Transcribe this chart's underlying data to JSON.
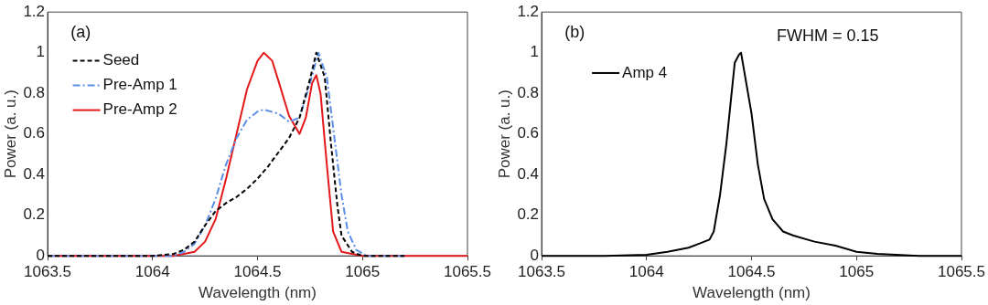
{
  "chart_data": [
    {
      "type": "line",
      "xlabel": "Wavelength (nm)",
      "ylabel": "Power (a. u.)",
      "annotations": [
        "(a)"
      ],
      "xlim": [
        1063.5,
        1065.5
      ],
      "xticks": [
        1063.5,
        1064,
        1064.5,
        1065,
        1065.5
      ],
      "ylim": [
        0,
        1.2
      ],
      "yticks": [
        0,
        0.2,
        0.4,
        0.6,
        0.8,
        1,
        1.2
      ],
      "grid": false,
      "legend": "top left",
      "marker": "none",
      "series": [
        {
          "name": "Seed",
          "color": "#000000",
          "line_style": "dashed",
          "x": [
            1063.5,
            1064.0,
            1064.1,
            1064.15,
            1064.2,
            1064.25,
            1064.3,
            1064.35,
            1064.4,
            1064.45,
            1064.5,
            1064.55,
            1064.6,
            1064.65,
            1064.7,
            1064.75,
            1064.78,
            1064.82,
            1064.85,
            1064.88,
            1064.9,
            1064.95,
            1065.0,
            1065.2
          ],
          "values": [
            0,
            0,
            0.01,
            0.03,
            0.07,
            0.15,
            0.22,
            0.26,
            0.29,
            0.33,
            0.38,
            0.44,
            0.51,
            0.58,
            0.68,
            0.87,
            1.0,
            0.88,
            0.55,
            0.25,
            0.1,
            0.02,
            0,
            0
          ]
        },
        {
          "name": "Pre-Amp 1",
          "color": "#5b8ee6",
          "line_style": "dashdot",
          "x": [
            1063.5,
            1064.0,
            1064.1,
            1064.15,
            1064.2,
            1064.25,
            1064.3,
            1064.35,
            1064.4,
            1064.45,
            1064.5,
            1064.53,
            1064.6,
            1064.65,
            1064.7,
            1064.75,
            1064.79,
            1064.83,
            1064.87,
            1064.9,
            1064.93,
            1064.97,
            1065.02,
            1065.2
          ],
          "values": [
            0,
            0,
            0,
            0.02,
            0.06,
            0.15,
            0.28,
            0.45,
            0.58,
            0.67,
            0.71,
            0.72,
            0.7,
            0.66,
            0.68,
            0.85,
            1.0,
            0.88,
            0.55,
            0.3,
            0.12,
            0.03,
            0,
            0
          ]
        },
        {
          "name": "Pre-Amp 2",
          "color": "#e3191c",
          "line_style": "solid",
          "x": [
            1063.5,
            1064.0,
            1064.1,
            1064.2,
            1064.25,
            1064.3,
            1064.35,
            1064.4,
            1064.45,
            1064.5,
            1064.53,
            1064.57,
            1064.6,
            1064.65,
            1064.7,
            1064.73,
            1064.76,
            1064.78,
            1064.8,
            1064.83,
            1064.86,
            1064.9,
            1065.0,
            1065.5
          ],
          "values": [
            0,
            0,
            0,
            0.02,
            0.07,
            0.18,
            0.38,
            0.6,
            0.82,
            0.96,
            1.0,
            0.96,
            0.86,
            0.69,
            0.6,
            0.68,
            0.85,
            0.89,
            0.8,
            0.45,
            0.12,
            0.02,
            0,
            0
          ]
        }
      ]
    },
    {
      "type": "line",
      "xlabel": "Wavelength (nm)",
      "ylabel": "Power (a. u.)",
      "annotations": [
        "(b)",
        "FWHM = 0.15"
      ],
      "xlim": [
        1063.5,
        1065.5
      ],
      "xticks": [
        1063.5,
        1064,
        1064.5,
        1065,
        1065.5
      ],
      "ylim": [
        0,
        1.2
      ],
      "yticks": [
        0,
        0.2,
        0.4,
        0.6,
        0.8,
        1,
        1.2
      ],
      "grid": false,
      "legend": "top left",
      "marker": "none",
      "series": [
        {
          "name": "Amp 4",
          "color": "#000000",
          "line_style": "solid",
          "x": [
            1063.5,
            1063.8,
            1064.0,
            1064.1,
            1064.2,
            1064.25,
            1064.3,
            1064.32,
            1064.35,
            1064.38,
            1064.4,
            1064.42,
            1064.44,
            1064.45,
            1064.47,
            1064.5,
            1064.53,
            1064.56,
            1064.6,
            1064.65,
            1064.7,
            1064.8,
            1064.9,
            1065.0,
            1065.1,
            1065.3,
            1065.5
          ],
          "values": [
            0,
            0,
            0.005,
            0.02,
            0.04,
            0.06,
            0.08,
            0.12,
            0.3,
            0.55,
            0.75,
            0.95,
            0.99,
            1.0,
            0.88,
            0.7,
            0.45,
            0.28,
            0.18,
            0.12,
            0.1,
            0.07,
            0.05,
            0.02,
            0.01,
            0,
            0
          ]
        }
      ]
    }
  ]
}
